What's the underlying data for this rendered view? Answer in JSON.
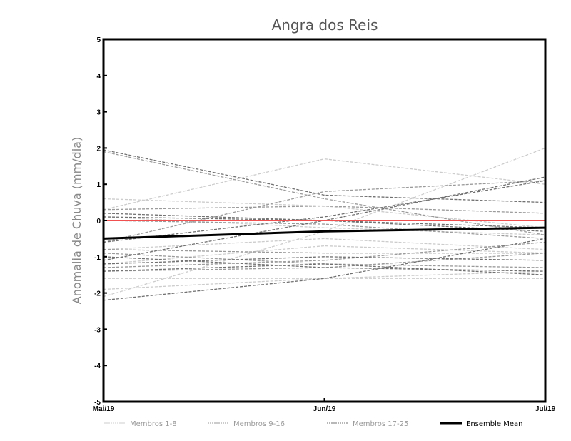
{
  "chart_data": {
    "type": "line",
    "title": "Angra dos Reis",
    "xlabel": "",
    "ylabel": "Anomalia de Chuva (mm/dia)",
    "ylim": [
      -5,
      5
    ],
    "yticks": [
      "-5",
      "-4",
      "-3",
      "-2",
      "-1",
      "0",
      "1",
      "2",
      "3",
      "4",
      "5"
    ],
    "categories": [
      "Mai/19",
      "Jun/19",
      "Jul/19"
    ],
    "reference_line": {
      "value": 0,
      "color": "#f05050"
    },
    "groups": [
      {
        "name": "Membros 1-8",
        "color": "#cccccc",
        "members": [
          [
            0.3,
            1.7,
            1.0
          ],
          [
            -2.1,
            -0.3,
            2.0
          ],
          [
            0.6,
            0.4,
            -0.2
          ],
          [
            -1.6,
            -1.6,
            -1.6
          ],
          [
            -1.9,
            -1.6,
            -1.4
          ],
          [
            -0.8,
            -0.5,
            -0.8
          ],
          [
            0.1,
            -0.2,
            -0.4
          ],
          [
            -1.2,
            -0.7,
            -0.9
          ]
        ]
      },
      {
        "name": "Membros 9-16",
        "color": "#9a9a9a",
        "members": [
          [
            1.9,
            0.6,
            -0.4
          ],
          [
            0.3,
            0.4,
            0.2
          ],
          [
            -0.6,
            0.8,
            1.1
          ],
          [
            -1.3,
            -1.1,
            -0.6
          ],
          [
            -0.9,
            -1.2,
            -1.3
          ],
          [
            0.0,
            -0.1,
            -0.5
          ],
          [
            -1.4,
            -1.3,
            -0.9
          ],
          [
            -0.8,
            -0.9,
            -0.9
          ]
        ]
      },
      {
        "name": "Membros 17-25",
        "color": "#707070",
        "members": [
          [
            1.95,
            0.7,
            0.5
          ],
          [
            -2.2,
            -1.6,
            -0.5
          ],
          [
            -1.1,
            0.0,
            1.2
          ],
          [
            -1.4,
            -1.2,
            -1.5
          ],
          [
            0.1,
            0.0,
            -0.2
          ],
          [
            -0.6,
            0.1,
            1.1
          ],
          [
            -1.2,
            -1.0,
            -1.1
          ],
          [
            -1.0,
            -1.3,
            -1.4
          ],
          [
            0.2,
            0.0,
            -0.3
          ]
        ]
      }
    ],
    "ensemble_mean": {
      "name": "Ensemble Mean",
      "color": "#000000",
      "values": [
        -0.5,
        -0.3,
        -0.2
      ]
    },
    "legend_position": "bottom"
  }
}
